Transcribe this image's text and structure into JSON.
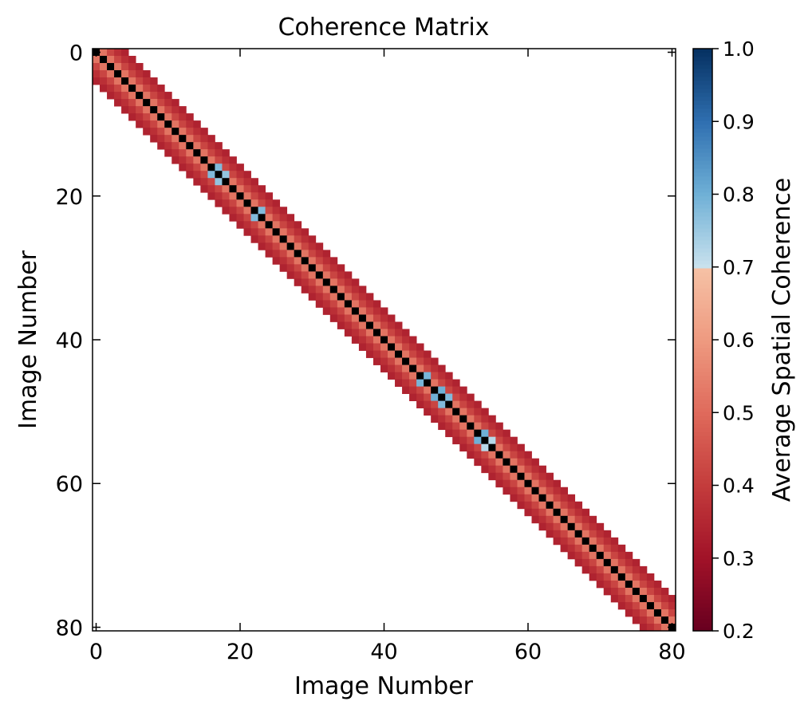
{
  "chart_data": {
    "type": "heatmap",
    "title": "Coherence Matrix",
    "xlabel": "Image Number",
    "ylabel": "Image Number",
    "colorbar_label": "Average Spatial Coherence",
    "n": 81,
    "xlim": [
      0,
      80
    ],
    "ylim": [
      80,
      0
    ],
    "x_ticks": [
      "0",
      "20",
      "40",
      "60",
      "80"
    ],
    "y_ticks": [
      "0",
      "20",
      "40",
      "60",
      "80"
    ],
    "x_tick_values": [
      0,
      20,
      40,
      60,
      80
    ],
    "y_tick_values": [
      0,
      20,
      40,
      60,
      80
    ],
    "vmin": 0.2,
    "vmax": 1.0,
    "colorbar_ticks": [
      "0.2",
      "0.3",
      "0.4",
      "0.5",
      "0.6",
      "0.7",
      "0.8",
      "0.9",
      "1.0"
    ],
    "colorbar_tick_values": [
      0.2,
      0.3,
      0.4,
      0.5,
      0.6,
      0.7,
      0.8,
      0.9,
      1.0
    ],
    "band_halfwidth": 4,
    "diagonal_value": 1.0,
    "band_values": [
      0.52,
      0.42,
      0.37,
      0.34
    ],
    "high_coherence_pairs": [
      {
        "i": 17,
        "j": 16,
        "value": 0.78
      },
      {
        "i": 18,
        "j": 17,
        "value": 0.76
      },
      {
        "i": 23,
        "j": 22,
        "value": 0.78
      },
      {
        "i": 46,
        "j": 45,
        "value": 0.79
      },
      {
        "i": 48,
        "j": 47,
        "value": 0.8
      },
      {
        "i": 49,
        "j": 48,
        "value": 0.78
      },
      {
        "i": 54,
        "j": 53,
        "value": 0.8
      },
      {
        "i": 55,
        "j": 54,
        "value": 0.72
      }
    ],
    "colormap": [
      {
        "v": 0.2,
        "color": "#67001f"
      },
      {
        "v": 0.3,
        "color": "#a11228"
      },
      {
        "v": 0.4,
        "color": "#c43c3c"
      },
      {
        "v": 0.5,
        "color": "#df6a5b"
      },
      {
        "v": 0.6,
        "color": "#ee9a80"
      },
      {
        "v": 0.7,
        "color": "#f6c2a6"
      },
      {
        "v": 0.701,
        "color": "#c8e1ed"
      },
      {
        "v": 0.8,
        "color": "#6fb0d6"
      },
      {
        "v": 0.9,
        "color": "#2f6fb0"
      },
      {
        "v": 1.0,
        "color": "#053061"
      }
    ],
    "diagonal_color": "#000000",
    "grid": false
  }
}
